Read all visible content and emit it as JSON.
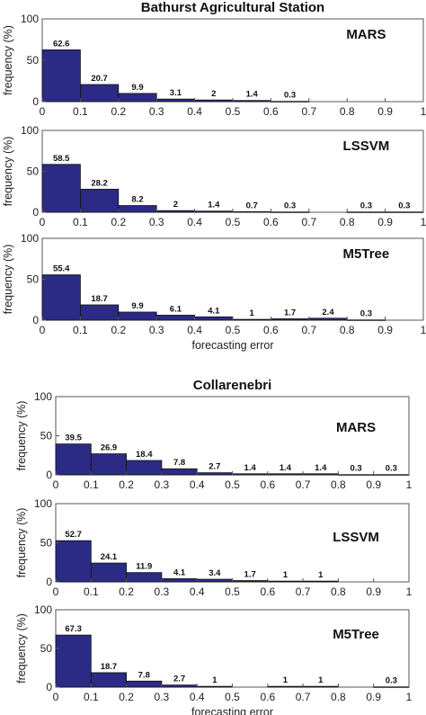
{
  "chart_data": [
    {
      "type": "bar",
      "title": "Bathurst Agricultural Station",
      "subtitle": "MARS",
      "xlabel": "",
      "ylabel": "frequency (%)",
      "x_ticks": [
        "0",
        "0.1",
        "0.2",
        "0.3",
        "0.4",
        "0.5",
        "0.6",
        "0.7",
        "0.8",
        "0.9",
        "1"
      ],
      "y_ticks": [
        "0",
        "50",
        "100"
      ],
      "xlim": [
        0,
        1
      ],
      "ylim": [
        0,
        100
      ],
      "bin_edges": [
        0,
        0.1,
        0.2,
        0.3,
        0.4,
        0.5,
        0.6,
        0.7,
        0.8,
        0.9,
        1.0
      ],
      "values": [
        62.6,
        20.7,
        9.9,
        3.1,
        2,
        1.4,
        0.3,
        null,
        null,
        null
      ],
      "labels": [
        "62.6",
        "20.7",
        "9.9",
        "3.1",
        "2",
        "1.4",
        "0.3",
        "",
        "",
        ""
      ],
      "bar_color": "#2b2b85"
    },
    {
      "type": "bar",
      "title": "",
      "subtitle": "LSSVM",
      "xlabel": "",
      "ylabel": "frequency (%)",
      "x_ticks": [
        "0",
        "0.1",
        "0.2",
        "0.3",
        "0.4",
        "0.5",
        "0.6",
        "0.7",
        "0.8",
        "0.9",
        "1"
      ],
      "y_ticks": [
        "0",
        "50",
        "100"
      ],
      "xlim": [
        0,
        1
      ],
      "ylim": [
        0,
        100
      ],
      "bin_edges": [
        0,
        0.1,
        0.2,
        0.3,
        0.4,
        0.5,
        0.6,
        0.7,
        0.8,
        0.9,
        1.0
      ],
      "values": [
        58.5,
        28.2,
        8.2,
        2,
        1.4,
        0.7,
        0.3,
        null,
        0.3,
        0.3
      ],
      "labels": [
        "58.5",
        "28.2",
        "8.2",
        "2",
        "1.4",
        "0.7",
        "0.3",
        "",
        "0.3",
        "0.3"
      ],
      "bar_color": "#2b2b85"
    },
    {
      "type": "bar",
      "title": "",
      "subtitle": "M5Tree",
      "xlabel": "forecasting error",
      "ylabel": "frequency (%)",
      "x_ticks": [
        "0",
        "0.1",
        "0.2",
        "0.3",
        "0.4",
        "0.5",
        "0.6",
        "0.7",
        "0.8",
        "0.9",
        "1"
      ],
      "y_ticks": [
        "0",
        "50",
        "100"
      ],
      "xlim": [
        0,
        1
      ],
      "ylim": [
        0,
        100
      ],
      "bin_edges": [
        0,
        0.1,
        0.2,
        0.3,
        0.4,
        0.5,
        0.6,
        0.7,
        0.8,
        0.9,
        1.0
      ],
      "values": [
        55.4,
        18.7,
        9.9,
        6.1,
        4.1,
        1,
        1.7,
        2.4,
        0.3,
        null
      ],
      "labels": [
        "55.4",
        "18.7",
        "9.9",
        "6.1",
        "4.1",
        "1",
        "1.7",
        "2.4",
        "0.3",
        ""
      ],
      "bar_color": "#2b2b85"
    },
    {
      "type": "bar",
      "title": "Collarenebri",
      "subtitle": "MARS",
      "xlabel": "",
      "ylabel": "frequency (%)",
      "x_ticks": [
        "0",
        "0.1",
        "0.2",
        "0.3",
        "0.4",
        "0.5",
        "0.6",
        "0.7",
        "0.8",
        "0.9",
        "1"
      ],
      "y_ticks": [
        "0",
        "50",
        "100"
      ],
      "xlim": [
        0,
        1
      ],
      "ylim": [
        0,
        100
      ],
      "bin_edges": [
        0,
        0.1,
        0.2,
        0.3,
        0.4,
        0.5,
        0.6,
        0.7,
        0.8,
        0.9,
        1.0
      ],
      "values": [
        39.5,
        26.9,
        18.4,
        7.8,
        2.7,
        1.4,
        1.4,
        1.4,
        0.3,
        0.3
      ],
      "labels": [
        "39.5",
        "26.9",
        "18.4",
        "7.8",
        "2.7",
        "1.4",
        "1.4",
        "1.4",
        "0.3",
        "0.3"
      ],
      "bar_color": "#2b2b85"
    },
    {
      "type": "bar",
      "title": "",
      "subtitle": "LSSVM",
      "xlabel": "",
      "ylabel": "frequency (%)",
      "x_ticks": [
        "0",
        "0.1",
        "0.2",
        "0.3",
        "0.4",
        "0.5",
        "0.6",
        "0.7",
        "0.8",
        "0.9",
        "1"
      ],
      "y_ticks": [
        "0",
        "50",
        "100"
      ],
      "xlim": [
        0,
        1
      ],
      "ylim": [
        0,
        100
      ],
      "bin_edges": [
        0,
        0.1,
        0.2,
        0.3,
        0.4,
        0.5,
        0.6,
        0.7,
        0.8,
        0.9,
        1.0
      ],
      "values": [
        52.7,
        24.1,
        11.9,
        4.1,
        3.4,
        1.7,
        1,
        1,
        null,
        null
      ],
      "labels": [
        "52.7",
        "24.1",
        "11.9",
        "4.1",
        "3.4",
        "1.7",
        "1",
        "1",
        "",
        ""
      ],
      "bar_color": "#2b2b85"
    },
    {
      "type": "bar",
      "title": "",
      "subtitle": "M5Tree",
      "xlabel": "forecasting error",
      "ylabel": "frequency (%)",
      "x_ticks": [
        "0",
        "0.1",
        "0.2",
        "0.3",
        "0.4",
        "0.5",
        "0.6",
        "0.7",
        "0.8",
        "0.9",
        "1"
      ],
      "y_ticks": [
        "0",
        "50",
        "100"
      ],
      "xlim": [
        0,
        1
      ],
      "ylim": [
        0,
        100
      ],
      "bin_edges": [
        0,
        0.1,
        0.2,
        0.3,
        0.4,
        0.5,
        0.6,
        0.7,
        0.8,
        0.9,
        1.0
      ],
      "values": [
        67.3,
        18.7,
        7.8,
        2.7,
        1,
        null,
        1,
        1,
        null,
        0.3
      ],
      "labels": [
        "67.3",
        "18.7",
        "7.8",
        "2.7",
        "1",
        "",
        "1",
        "1",
        "",
        "0.3"
      ],
      "bar_color": "#2b2b85"
    }
  ]
}
